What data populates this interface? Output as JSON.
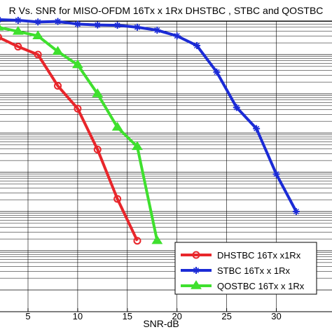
{
  "chart_data": {
    "type": "line",
    "title": "R Vs. SNR for MISO-OFDM 16Tx x 1Rx DHSTBC ,  STBC  and QOSTBC",
    "xlabel": "SNR-dB",
    "ylabel": "",
    "y_scale": "log",
    "xlim": [
      2,
      34
    ],
    "xticks": [
      5,
      10,
      15,
      20,
      25,
      30
    ],
    "grid": true,
    "legend_position": "bottom-right",
    "series": [
      {
        "name": "DHSTBC 16Tx x1Rx",
        "color": "#e8262b",
        "marker": "circle",
        "x": [
          2,
          4,
          6,
          8,
          10,
          12,
          14,
          16
        ],
        "y": [
          0.28,
          0.16,
          0.1,
          0.016,
          0.0042,
          0.00038,
          2.1e-05,
          1.8e-06
        ]
      },
      {
        "name": "STBC 16Tx x 1Rx",
        "color": "#1b2bd6",
        "marker": "star",
        "x": [
          2,
          4,
          6,
          8,
          10,
          12,
          14,
          16,
          18,
          20,
          22,
          24,
          26,
          28,
          30,
          32
        ],
        "y": [
          0.78,
          0.75,
          0.68,
          0.7,
          0.6,
          0.57,
          0.56,
          0.5,
          0.42,
          0.3,
          0.17,
          0.036,
          0.0045,
          0.0013,
          9e-05,
          1e-05
        ]
      },
      {
        "name": "QOSTBC 16Tx x 1Rx",
        "color": "#3fe02e",
        "marker": "triangle",
        "x": [
          2,
          4,
          6,
          8,
          10,
          12,
          14,
          16,
          18
        ],
        "y": [
          0.5,
          0.39,
          0.3,
          0.12,
          0.055,
          0.01,
          0.0014,
          0.00045,
          1.8e-06
        ]
      }
    ]
  }
}
